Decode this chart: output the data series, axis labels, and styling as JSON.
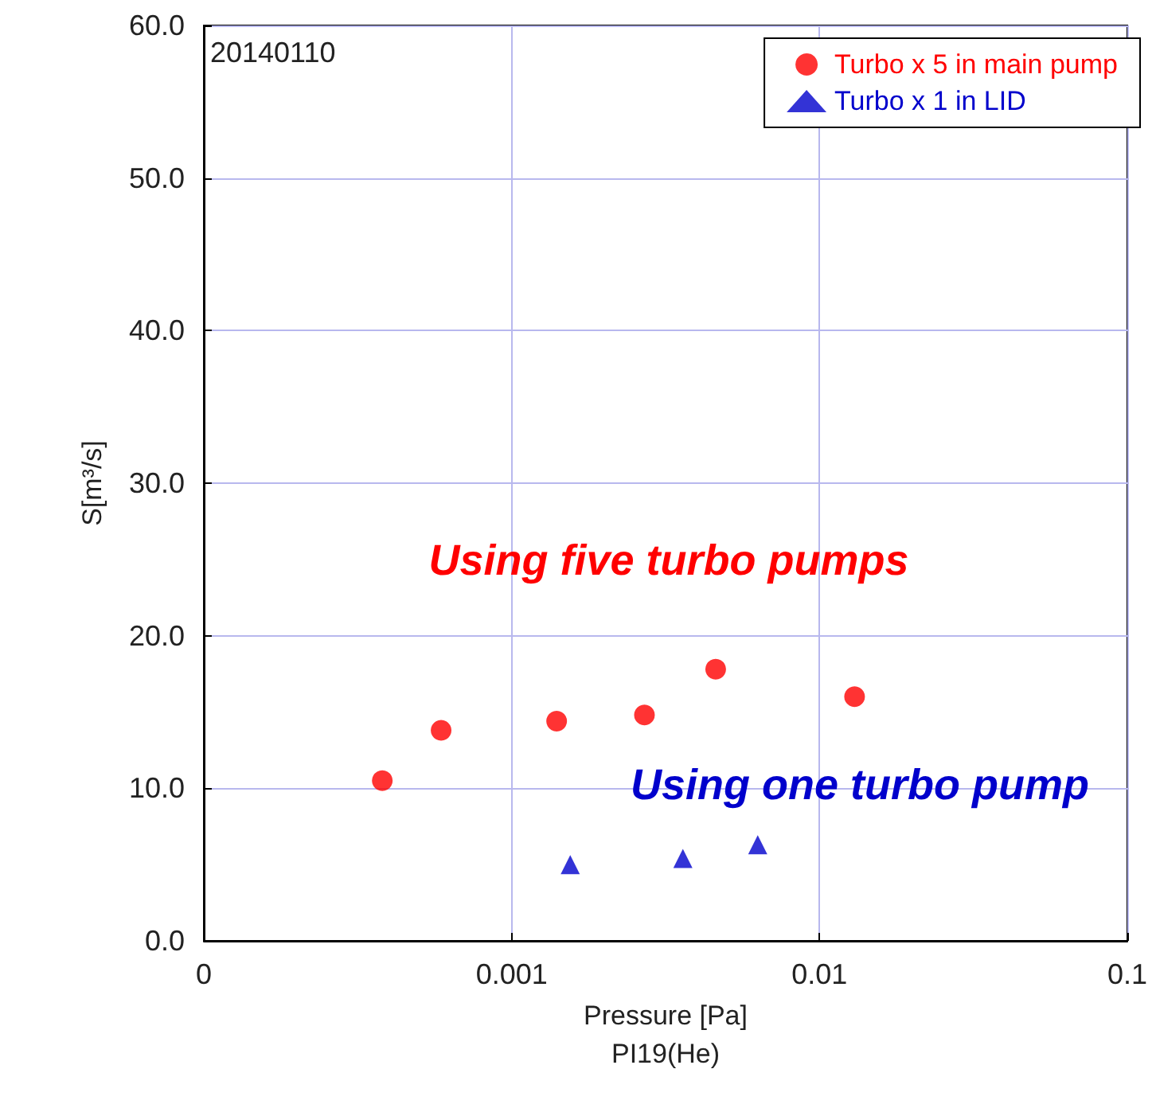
{
  "chart_data": {
    "type": "scatter",
    "xlabel": "Pressure [Pa]\nPI19(He)",
    "ylabel": "S[m³/s]",
    "log": "x",
    "grid": true,
    "legend": "top right",
    "xlim": [
      0.0001,
      0.1
    ],
    "xticks": [
      {
        "value": 0.0001,
        "label": "0"
      },
      0.001,
      0.01,
      0.1
    ],
    "ylim": [
      0,
      60
    ],
    "yticks": [
      {
        "value": 0,
        "label": "0.0"
      },
      {
        "value": 10,
        "label": "10.0"
      },
      {
        "value": 20,
        "label": "20.0"
      },
      {
        "value": 30,
        "label": "30.0"
      },
      {
        "value": 40,
        "label": "40.0"
      },
      {
        "value": 50,
        "label": "50.0"
      },
      {
        "value": 60,
        "label": "60.0"
      }
    ],
    "series": [
      {
        "name": "Turbo x 5 in main pump",
        "color": "#ff0000",
        "marker": "circle",
        "x": [
          0.00038,
          0.00059,
          0.0014,
          0.0027,
          0.0046,
          0.013
        ],
        "values": [
          10.5,
          13.8,
          14.4,
          14.8,
          17.8,
          16.0
        ]
      },
      {
        "name": "Turbo x 1 in LID",
        "color": "#0000cc",
        "marker": "triangle",
        "x": [
          0.00155,
          0.0036,
          0.0063
        ],
        "values": [
          5.0,
          5.4,
          6.3
        ]
      }
    ],
    "annotations": [
      "20140110",
      "Using five turbo pumps",
      "Using one turbo pump"
    ]
  }
}
